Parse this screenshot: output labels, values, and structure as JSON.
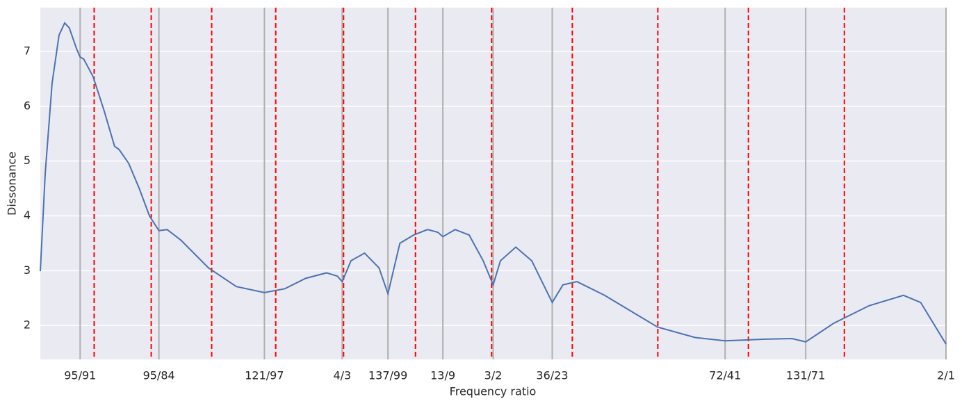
{
  "chart_data": {
    "type": "line",
    "xlabel": "Frequency ratio",
    "ylabel": "Dissonance",
    "xlim": [
      1,
      2
    ],
    "ylim": [
      1.38,
      7.8
    ],
    "xticks": [
      {
        "value": 1.04396,
        "label": "95/91"
      },
      {
        "value": 1.13095,
        "label": "95/84"
      },
      {
        "value": 1.24742,
        "label": "121/97"
      },
      {
        "value": 1.33333,
        "label": "4/3"
      },
      {
        "value": 1.38384,
        "label": "137/99"
      },
      {
        "value": 1.44444,
        "label": "13/9"
      },
      {
        "value": 1.5,
        "label": "3/2"
      },
      {
        "value": 1.56522,
        "label": "36/23"
      },
      {
        "value": 1.7561,
        "label": "72/41"
      },
      {
        "value": 1.84507,
        "label": "131/71"
      },
      {
        "value": 2,
        "label": "2/1"
      }
    ],
    "yticks": [
      2,
      3,
      4,
      5,
      6,
      7
    ],
    "grid": true,
    "xtick_line_color": "#b0b0b0",
    "vlines": {
      "color": "red",
      "values": [
        1.05946,
        1.12246,
        1.18921,
        1.25992,
        1.33484,
        1.41421,
        1.49831,
        1.5874,
        1.68179,
        1.7818,
        1.88775
      ]
    },
    "series": [
      {
        "color": "#4c72b0",
        "x": [
          1.0,
          1.0054,
          1.013,
          1.0207,
          1.0269,
          1.032,
          1.04,
          1.04396,
          1.048,
          1.0583,
          1.0706,
          1.082,
          1.087,
          1.0975,
          1.109,
          1.1205,
          1.13095,
          1.14,
          1.155,
          1.1857,
          1.2164,
          1.24742,
          1.27,
          1.293,
          1.316,
          1.328,
          1.33333,
          1.343,
          1.358,
          1.374,
          1.38384,
          1.397,
          1.4122,
          1.4275,
          1.439,
          1.44444,
          1.458,
          1.4735,
          1.489,
          1.5,
          1.508,
          1.525,
          1.5426,
          1.56522,
          1.577,
          1.5925,
          1.623,
          1.6815,
          1.723,
          1.7561,
          1.8,
          1.83,
          1.84507,
          1.876,
          1.915,
          1.953,
          1.972,
          2.0
        ],
        "values": [
          2.99,
          4.77,
          6.42,
          7.3,
          7.52,
          7.43,
          7.05,
          6.9,
          6.86,
          6.54,
          5.91,
          5.27,
          5.21,
          4.96,
          4.51,
          4.0,
          3.73,
          3.75,
          3.56,
          3.05,
          2.71,
          2.6,
          2.67,
          2.86,
          2.96,
          2.9,
          2.8,
          3.18,
          3.32,
          3.05,
          2.58,
          3.5,
          3.65,
          3.75,
          3.7,
          3.62,
          3.75,
          3.65,
          3.18,
          2.74,
          3.18,
          3.43,
          3.18,
          2.42,
          2.74,
          2.8,
          2.55,
          1.97,
          1.78,
          1.72,
          1.75,
          1.76,
          1.7,
          2.04,
          2.36,
          2.55,
          2.42,
          1.66
        ]
      }
    ]
  }
}
